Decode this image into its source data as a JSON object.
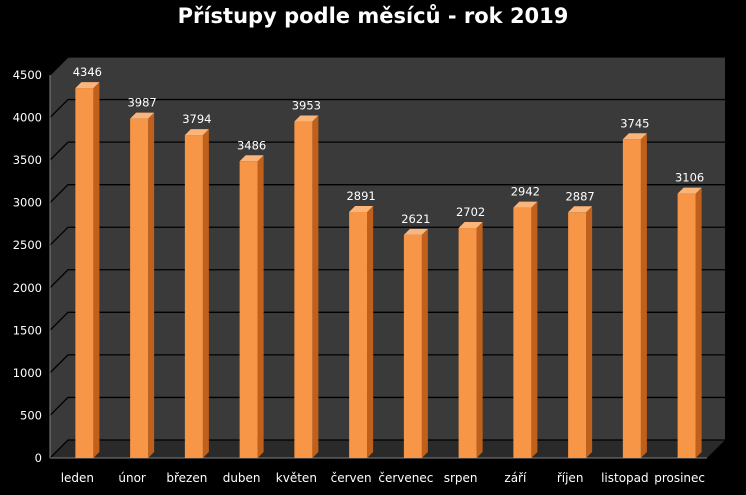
{
  "chart_data": {
    "type": "bar",
    "title": "Přístupy podle měsíců - rok 2019",
    "categories": [
      "leden",
      "únor",
      "březen",
      "duben",
      "květen",
      "červen",
      "červenec",
      "srpen",
      "září",
      "říjen",
      "listopad",
      "prosinec"
    ],
    "values": [
      4346,
      3987,
      3794,
      3486,
      3953,
      2891,
      2621,
      2702,
      2942,
      2887,
      3745,
      3106
    ],
    "xlabel": "",
    "ylabel": "",
    "ylim": [
      0,
      4500
    ],
    "yticks": [
      0,
      500,
      1000,
      1500,
      2000,
      2500,
      3000,
      3500,
      4000,
      4500
    ],
    "grid": true,
    "legend": "none",
    "colors": {
      "bar_front": "#F79646",
      "bar_side": "#C0601A",
      "bar_top": "#FBB57A",
      "background": "#000000",
      "plot_wall": "#3A3A3A",
      "gridline": "#000000",
      "text": "#FFFFFF"
    }
  }
}
